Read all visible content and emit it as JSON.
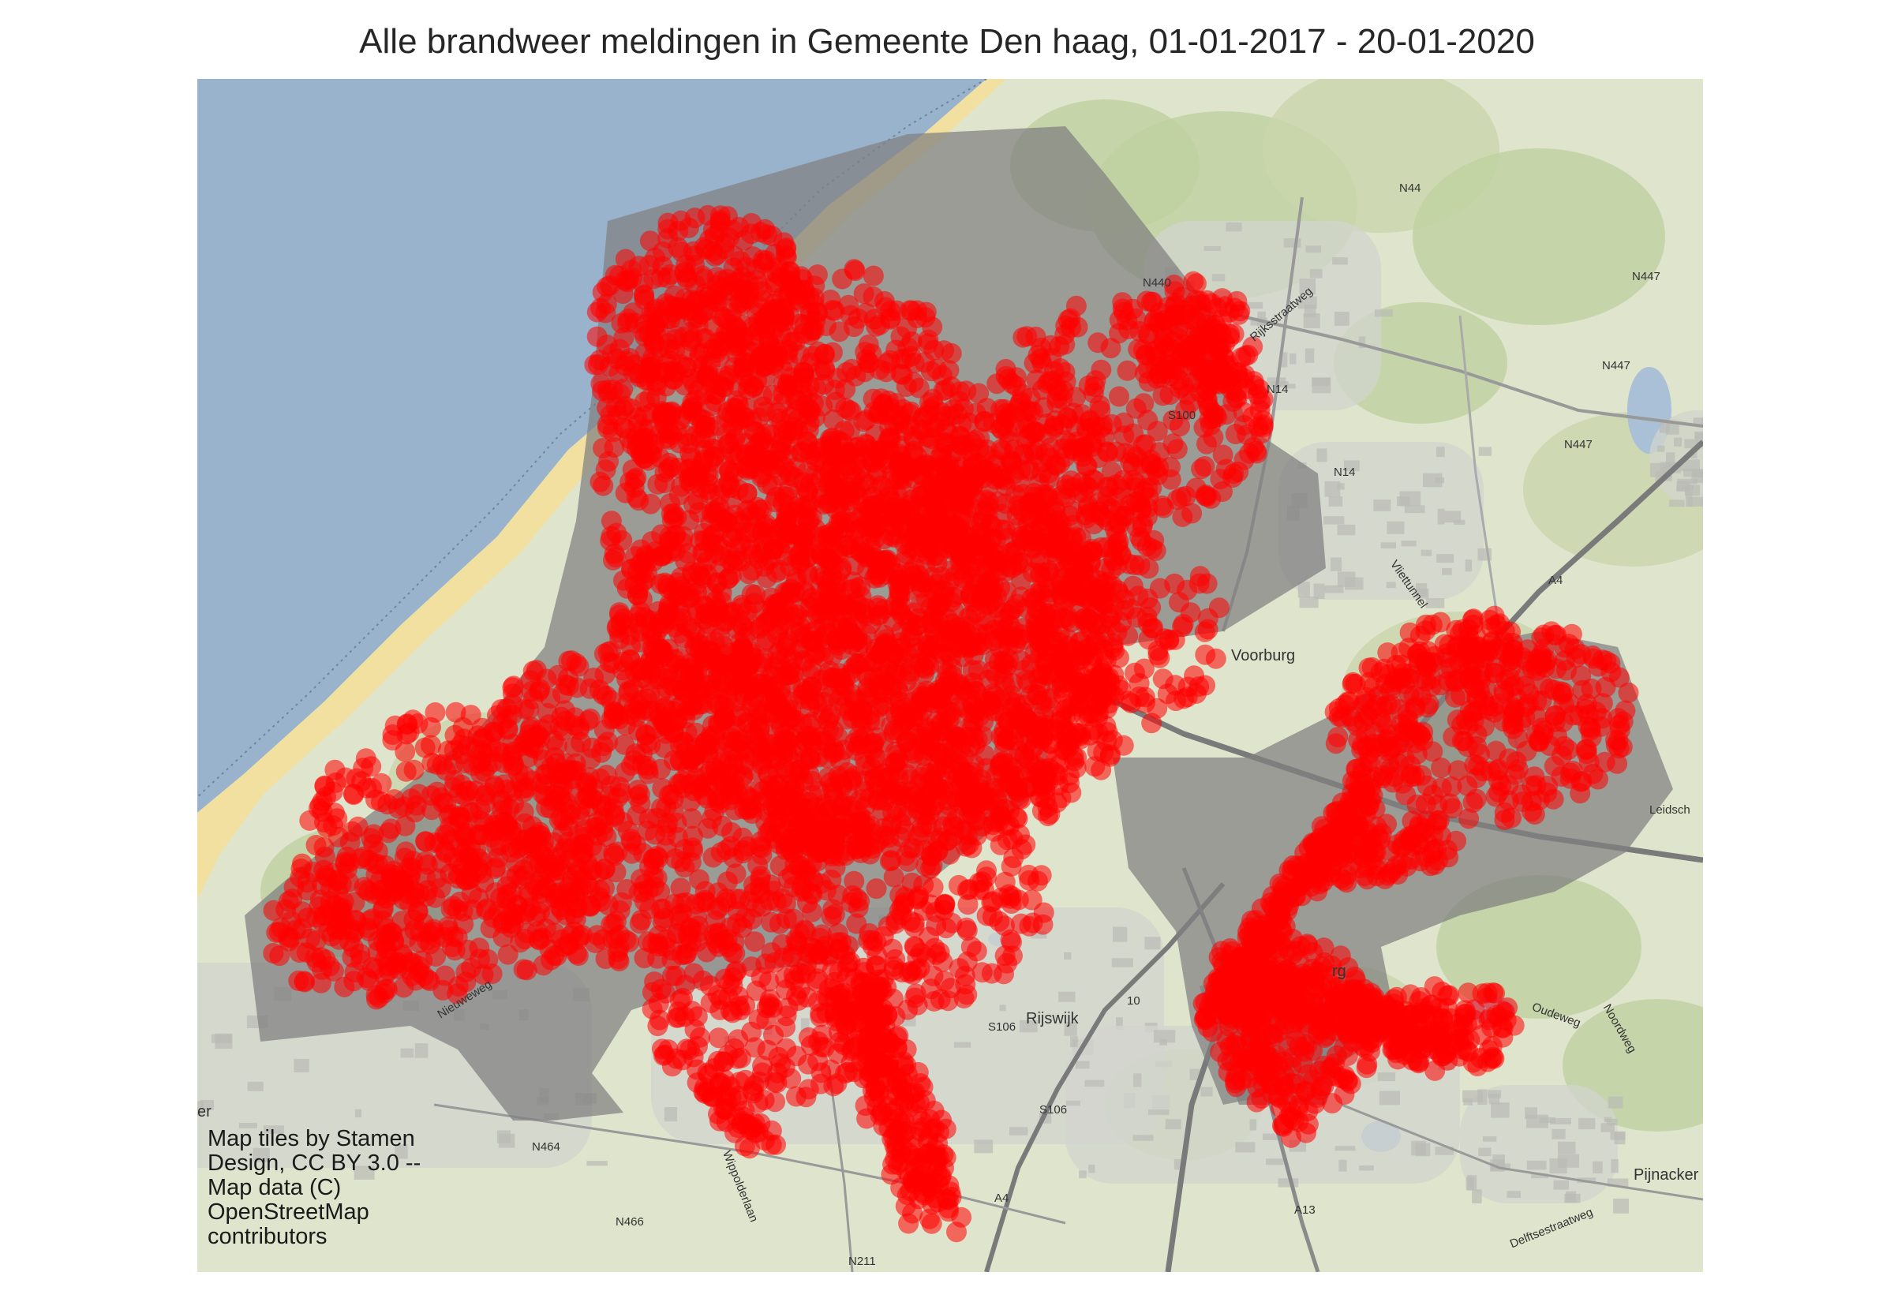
{
  "map": {
    "title": "Alle brandweer meldingen in Gemeente Den haag, 01-01-2017 - 20-01-2020",
    "attribution": "Map tiles by Stamen Design, CC BY 3.0 -- Map data (C) OpenStreetMap contributors",
    "colors": {
      "sea": "#99b3cc",
      "land": "#dfe4cc",
      "beach": "#f2e0a0",
      "municipality_overlay": "#7f7f7f",
      "incident_marker": "#ff0000"
    },
    "place_labels": [
      "Voorburg",
      "Rijswijk",
      "Pijnacker",
      "rg"
    ],
    "road_labels": [
      "N44",
      "N440",
      "N447",
      "N447",
      "N447",
      "N14",
      "N14",
      "S100",
      "A4",
      "A4",
      "A13",
      "S106",
      "S106",
      "N464",
      "N466",
      "N211",
      "10",
      "Nieuweweg",
      "Wippolderlaan",
      "Rijksstraatweg",
      "Vliettunnel",
      "Leidsch",
      "Oudeweg",
      "Noordweg",
      "Delftsestraatweg",
      "er"
    ]
  }
}
